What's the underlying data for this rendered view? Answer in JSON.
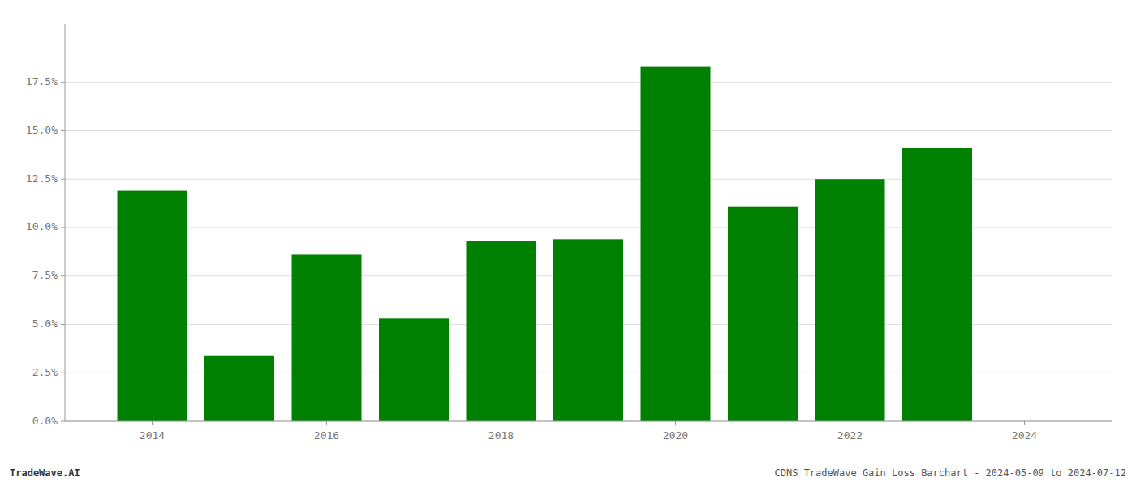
{
  "chart_data": {
    "type": "bar",
    "x": [
      2014,
      2015,
      2016,
      2017,
      2018,
      2019,
      2020,
      2021,
      2022,
      2023
    ],
    "values": [
      0.119,
      0.034,
      0.086,
      0.053,
      0.093,
      0.094,
      0.183,
      0.111,
      0.125,
      0.141
    ],
    "color": "#008000",
    "xlim": [
      2013.0,
      2025.0
    ],
    "xticks": [
      2014,
      2016,
      2018,
      2020,
      2022,
      2024
    ],
    "ylim": [
      0,
      0.205
    ],
    "yticks": [
      {
        "value": 0.0,
        "label": "0.0%"
      },
      {
        "value": 0.025,
        "label": "2.5%"
      },
      {
        "value": 0.05,
        "label": "5.0%"
      },
      {
        "value": 0.075,
        "label": "7.5%"
      },
      {
        "value": 0.1,
        "label": "10.0%"
      },
      {
        "value": 0.125,
        "label": "12.5%"
      },
      {
        "value": 0.15,
        "label": "15.0%"
      },
      {
        "value": 0.175,
        "label": "17.5%"
      }
    ],
    "grid": true,
    "annotations": [
      "TradeWave.AI",
      "CDNS TradeWave Gain Loss Barchart - 2024-05-09 to 2024-07-12"
    ]
  }
}
